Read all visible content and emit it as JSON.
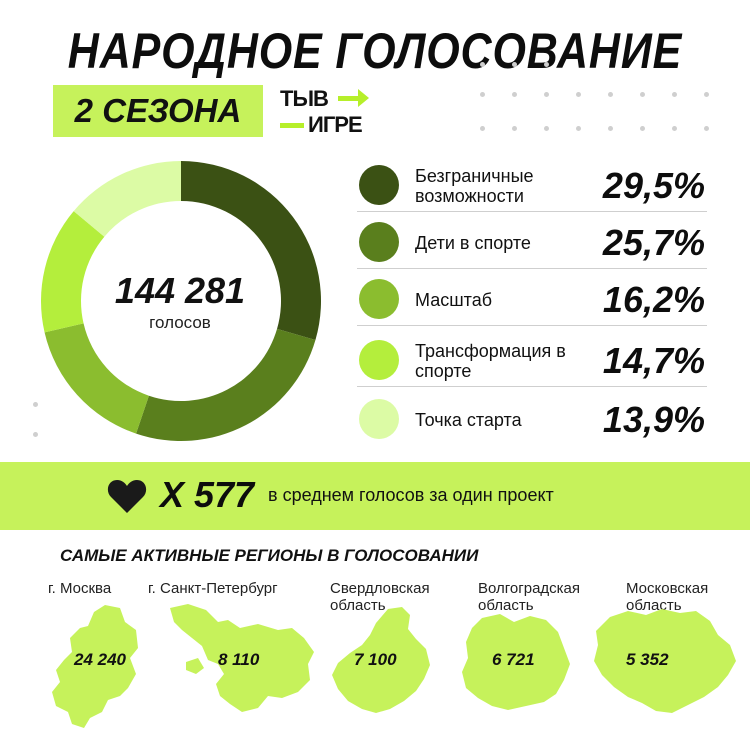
{
  "title": "НАРОДНОЕ ГОЛОСОВАНИЕ",
  "season": "2 СЕЗОНА",
  "logo": {
    "line1": "ТЫВ",
    "line2": "ИГРЕ"
  },
  "colors": {
    "accent": "#c6f25b",
    "slices": [
      "#3b5114",
      "#5a7f1d",
      "#8bbd2f",
      "#b4ee3c",
      "#dcfba5"
    ]
  },
  "chart_data": {
    "type": "pie",
    "total": "144 281",
    "total_label": "голосов",
    "categories": [
      "Безграничные возможности",
      "Дети в спорте",
      "Масштаб",
      "Трансформация в спорте",
      "Точка старта"
    ],
    "values": [
      29.5,
      25.7,
      16.2,
      14.7,
      13.9
    ],
    "labels": [
      "29,5%",
      "25,7%",
      "16,2%",
      "14,7%",
      "13,9%"
    ]
  },
  "legend": [
    {
      "label": "Безграничные возможности",
      "value": "29,5%"
    },
    {
      "label": "Дети в спорте",
      "value": "25,7%"
    },
    {
      "label": "Масштаб",
      "value": "16,2%"
    },
    {
      "label": "Трансформация в спорте",
      "value": "14,7%"
    },
    {
      "label": "Точка старта",
      "value": "13,9%"
    }
  ],
  "average": {
    "icon": "heart-icon",
    "value": "X 577",
    "text": "в среднем голосов за один проект"
  },
  "regions_title": "САМЫЕ АКТИВНЫЕ РЕГИОНЫ В ГОЛОСОВАНИИ",
  "regions": [
    {
      "name": "г. Москва",
      "value": "24 240"
    },
    {
      "name": "г. Санкт-Петербург",
      "value": "8 110"
    },
    {
      "name": "Свердловская область",
      "value": "7 100"
    },
    {
      "name": "Волгоградская область",
      "value": "6 721"
    },
    {
      "name": "Московская область",
      "value": "5 352"
    }
  ]
}
